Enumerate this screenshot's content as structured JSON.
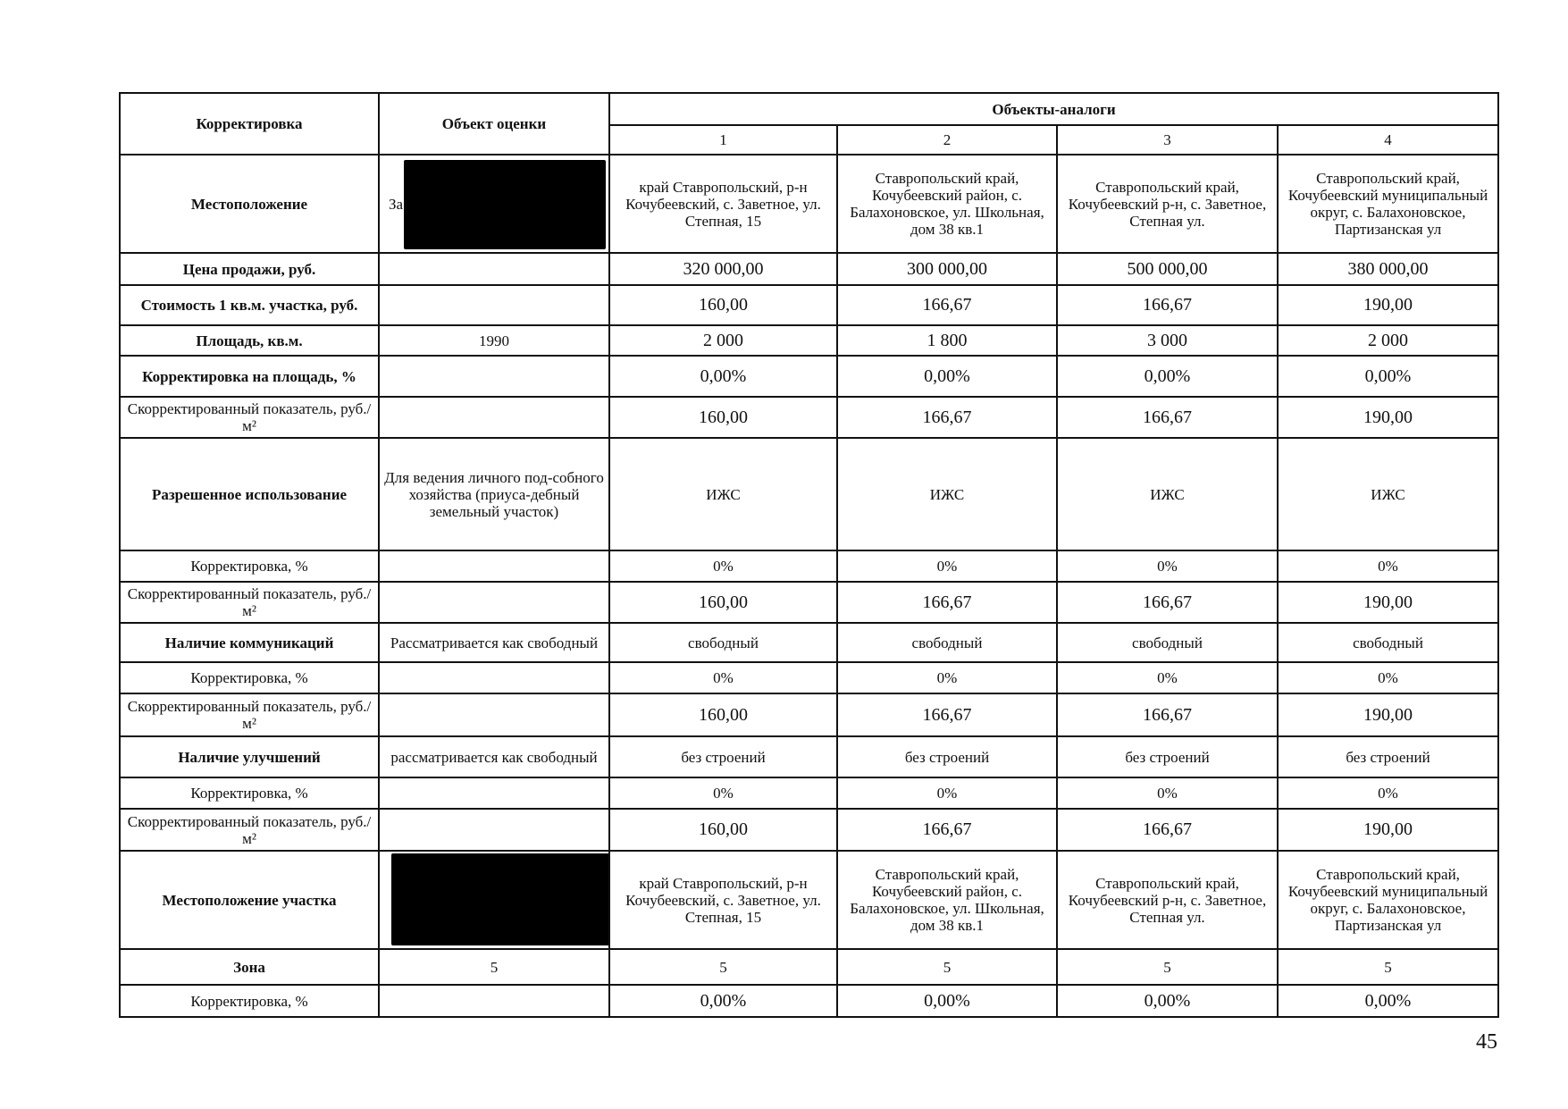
{
  "header": {
    "col_correction": "Корректировка",
    "col_subject": "Объект оценки",
    "col_analogs": "Объекты-аналоги",
    "analog_numbers": [
      "1",
      "2",
      "3",
      "4"
    ]
  },
  "rows": [
    {
      "label": "Местоположение",
      "subject": "За",
      "values": [
        "край Ставропольский, р-н Кочубеевский, с. Заветное, ул. Степная, 15",
        "Ставропольский край, Кочубеевский район, с. Балахоновское, ул. Школьная, дом 38 кв.1",
        "Ставропольский край, Кочубеевский р-н, с. Заветное, Степная ул.",
        "Ставропольский край, Кочубеевский муниципальный округ, с. Балахоновское, Партизанская ул"
      ]
    },
    {
      "label": "Цена продажи, руб.",
      "subject": "",
      "values": [
        "320 000,00",
        "300 000,00",
        "500 000,00",
        "380 000,00"
      ]
    },
    {
      "label": "Стоимость 1 кв.м. участка, руб.",
      "subject": "",
      "values": [
        "160,00",
        "166,67",
        "166,67",
        "190,00"
      ]
    },
    {
      "label": "Площадь, кв.м.",
      "subject": "1990",
      "values": [
        "2 000",
        "1 800",
        "3 000",
        "2 000"
      ]
    },
    {
      "label": "Корректировка на площадь, %",
      "subject": "",
      "values": [
        "0,00%",
        "0,00%",
        "0,00%",
        "0,00%"
      ]
    },
    {
      "label": "Скорректированный показатель, руб./м²",
      "subject": "",
      "values": [
        "160,00",
        "166,67",
        "166,67",
        "190,00"
      ]
    },
    {
      "label": "Разрешенное использование",
      "subject": "Для ведения личного под-собного хозяйства  (приуса-дебный земельный участок)",
      "values": [
        "ИЖС",
        "ИЖС",
        "ИЖС",
        "ИЖС"
      ]
    },
    {
      "label": "Корректировка, %",
      "subject": "",
      "values": [
        "0%",
        "0%",
        "0%",
        "0%"
      ]
    },
    {
      "label": "Скорректированный показатель, руб./м²",
      "subject": "",
      "values": [
        "160,00",
        "166,67",
        "166,67",
        "190,00"
      ]
    },
    {
      "label": "Наличие коммуникаций",
      "subject": "Рассматривается как свободный",
      "values": [
        "свободный",
        "свободный",
        "свободный",
        "свободный"
      ]
    },
    {
      "label": "Корректировка, %",
      "subject": "",
      "values": [
        "0%",
        "0%",
        "0%",
        "0%"
      ]
    },
    {
      "label": "Скорректированный показатель, руб./м²",
      "subject": "",
      "values": [
        "160,00",
        "166,67",
        "166,67",
        "190,00"
      ]
    },
    {
      "label": "Наличие улучшений",
      "subject": "рассматривается как свободный",
      "values": [
        "без строений",
        "без строений",
        "без строений",
        "без строений"
      ]
    },
    {
      "label": "Корректировка, %",
      "subject": "",
      "values": [
        "0%",
        "0%",
        "0%",
        "0%"
      ]
    },
    {
      "label": "Скорректированный показатель, руб./м²",
      "subject": "",
      "values": [
        "160,00",
        "166,67",
        "166,67",
        "190,00"
      ]
    },
    {
      "label": "Местоположение участка",
      "subject": "",
      "values": [
        "край Ставропольский, р-н Кочубеевский, с. Заветное, ул. Степная, 15",
        "Ставропольский край, Кочубеевский район, с. Балахоновское, ул. Школьная, дом 38 кв.1",
        "Ставропольский край, Кочубеевский р-н, с. Заветное, Степная ул.",
        "Ставропольский край, Кочубеевский муниципальный округ, с. Балахоновское, Партизанская ул"
      ]
    },
    {
      "label": "Зона",
      "subject": "5",
      "values": [
        "5",
        "5",
        "5",
        "5"
      ]
    },
    {
      "label": "Корректировка, %",
      "subject": "",
      "values": [
        "0,00%",
        "0,00%",
        "0,00%",
        "0,00%"
      ]
    }
  ],
  "page_number": "45"
}
